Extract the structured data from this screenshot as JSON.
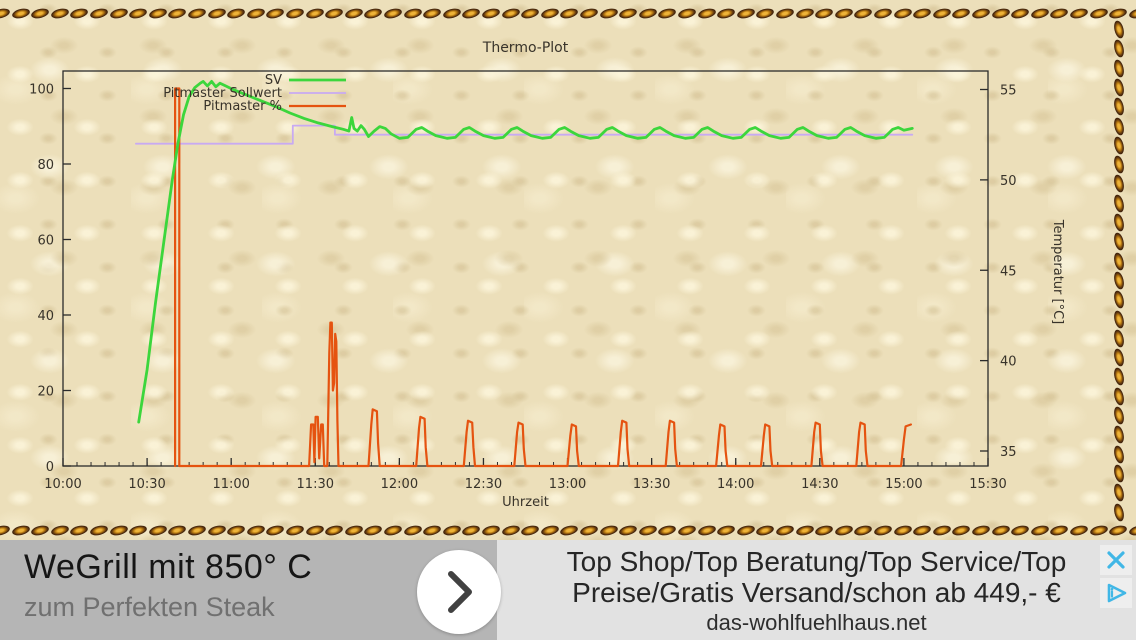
{
  "theme": {
    "leather_bg": "#ecdfba",
    "chain_dark": "#311808",
    "chain_gold": "#eeb338",
    "axis_color": "#2b2b2b",
    "label_color": "#38332a"
  },
  "chart_data": {
    "type": "line",
    "title": "Thermo-Plot",
    "xlabel": "Uhrzeit",
    "ylabel_right": "Temperatur [°C]",
    "legend_position": "top-left-inside",
    "grid": false,
    "x_axis": {
      "unit": "minutes_of_day",
      "min_minutes": 600,
      "max_minutes": 930,
      "minor_step_minutes": 5,
      "major_ticks": [
        {
          "m": 600,
          "label": "10:00"
        },
        {
          "m": 630,
          "label": "10:30"
        },
        {
          "m": 660,
          "label": "11:00"
        },
        {
          "m": 690,
          "label": "11:30"
        },
        {
          "m": 720,
          "label": "12:00"
        },
        {
          "m": 750,
          "label": "12:30"
        },
        {
          "m": 780,
          "label": "13:00"
        },
        {
          "m": 810,
          "label": "13:30"
        },
        {
          "m": 840,
          "label": "14:00"
        },
        {
          "m": 870,
          "label": "14:30"
        },
        {
          "m": 900,
          "label": "15:00"
        },
        {
          "m": 930,
          "label": "15:30"
        }
      ]
    },
    "y_left": {
      "min": 0,
      "max": 100,
      "ticks": [
        0,
        20,
        40,
        60,
        80,
        100
      ],
      "unit": "%"
    },
    "y_right": {
      "min": 35,
      "max": 55,
      "ticks": [
        35,
        40,
        45,
        50,
        55
      ],
      "unit": "°C"
    },
    "series": [
      {
        "name": "SV",
        "color": "#3cd63c",
        "axis": "right",
        "unit": "°C",
        "width": 2.8,
        "points": [
          [
            627,
            36.6
          ],
          [
            630,
            39.5
          ],
          [
            633,
            43.2
          ],
          [
            636,
            46.6
          ],
          [
            639,
            50.0
          ],
          [
            641,
            52.0
          ],
          [
            643,
            53.6
          ],
          [
            645,
            54.6
          ],
          [
            647,
            55.1
          ],
          [
            649,
            55.35
          ],
          [
            650,
            55.45
          ],
          [
            651.5,
            55.2
          ],
          [
            653,
            55.45
          ],
          [
            654.5,
            55.15
          ],
          [
            656,
            55.35
          ],
          [
            658,
            55.2
          ],
          [
            660,
            55.05
          ],
          [
            663,
            54.85
          ],
          [
            667,
            54.6
          ],
          [
            671,
            54.35
          ],
          [
            676,
            54.05
          ],
          [
            681,
            53.7
          ],
          [
            686,
            53.4
          ],
          [
            691,
            53.15
          ],
          [
            696,
            52.95
          ],
          [
            700,
            52.8
          ],
          [
            702,
            52.7
          ],
          [
            703,
            53.45
          ],
          [
            703.8,
            52.85
          ],
          [
            705,
            52.7
          ],
          [
            706.3,
            53.0
          ],
          [
            707.5,
            52.8
          ],
          [
            709,
            52.4
          ],
          [
            711,
            52.7
          ],
          [
            713,
            52.95
          ],
          [
            715,
            52.85
          ],
          [
            717,
            52.55
          ],
          [
            720,
            52.3
          ],
          [
            723,
            52.35
          ],
          [
            726,
            52.8
          ],
          [
            728,
            52.9
          ],
          [
            730,
            52.7
          ],
          [
            733,
            52.45
          ],
          [
            737,
            52.3
          ],
          [
            740,
            52.35
          ],
          [
            743,
            52.8
          ],
          [
            745,
            52.9
          ],
          [
            747,
            52.7
          ],
          [
            750,
            52.45
          ],
          [
            754,
            52.3
          ],
          [
            757,
            52.35
          ],
          [
            760,
            52.8
          ],
          [
            762,
            52.9
          ],
          [
            764,
            52.7
          ],
          [
            767,
            52.45
          ],
          [
            771,
            52.3
          ],
          [
            774,
            52.35
          ],
          [
            777,
            52.8
          ],
          [
            779,
            52.9
          ],
          [
            781,
            52.7
          ],
          [
            784,
            52.45
          ],
          [
            788,
            52.3
          ],
          [
            791,
            52.35
          ],
          [
            794,
            52.8
          ],
          [
            796,
            52.9
          ],
          [
            798,
            52.7
          ],
          [
            801,
            52.45
          ],
          [
            805,
            52.3
          ],
          [
            808,
            52.35
          ],
          [
            811,
            52.8
          ],
          [
            813,
            52.9
          ],
          [
            815,
            52.7
          ],
          [
            818,
            52.45
          ],
          [
            822,
            52.3
          ],
          [
            825,
            52.35
          ],
          [
            828,
            52.8
          ],
          [
            830,
            52.9
          ],
          [
            832,
            52.7
          ],
          [
            835,
            52.45
          ],
          [
            839,
            52.3
          ],
          [
            842,
            52.35
          ],
          [
            845,
            52.8
          ],
          [
            847,
            52.9
          ],
          [
            849,
            52.7
          ],
          [
            852,
            52.45
          ],
          [
            856,
            52.3
          ],
          [
            859,
            52.35
          ],
          [
            862,
            52.8
          ],
          [
            864,
            52.9
          ],
          [
            866,
            52.7
          ],
          [
            869,
            52.45
          ],
          [
            873,
            52.3
          ],
          [
            876,
            52.35
          ],
          [
            879,
            52.8
          ],
          [
            881,
            52.9
          ],
          [
            883,
            52.7
          ],
          [
            886,
            52.45
          ],
          [
            890,
            52.3
          ],
          [
            893,
            52.35
          ],
          [
            896,
            52.8
          ],
          [
            898,
            52.9
          ],
          [
            900,
            52.75
          ],
          [
            903,
            52.85
          ]
        ]
      },
      {
        "name": "Pitmaster Sollwert",
        "color": "#c8aaf2",
        "axis": "right",
        "unit": "°C",
        "width": 1.8,
        "points": [
          [
            626,
            52.0
          ],
          [
            682,
            52.0
          ],
          [
            682,
            53.0
          ],
          [
            697,
            53.0
          ],
          [
            697,
            52.5
          ],
          [
            903,
            52.5
          ]
        ]
      },
      {
        "name": "Pitmaster %",
        "color": "#e55310",
        "axis": "left",
        "unit": "%",
        "width": 2.2,
        "points": [
          [
            640,
            0
          ],
          [
            640,
            100
          ],
          [
            641.5,
            100
          ],
          [
            641.5,
            0
          ],
          [
            687.8,
            0
          ],
          [
            688.5,
            11
          ],
          [
            689.3,
            11
          ],
          [
            689.7,
            1
          ],
          [
            690.1,
            13
          ],
          [
            690.9,
            13
          ],
          [
            691.4,
            2
          ],
          [
            692.1,
            11
          ],
          [
            692.7,
            11
          ],
          [
            693.2,
            0
          ],
          [
            694.3,
            0
          ],
          [
            695,
            30
          ],
          [
            695.4,
            38
          ],
          [
            695.9,
            38
          ],
          [
            696.3,
            20
          ],
          [
            696.7,
            22
          ],
          [
            697.1,
            35
          ],
          [
            697.5,
            33
          ],
          [
            697.9,
            12
          ],
          [
            698.3,
            0
          ],
          [
            709,
            0
          ],
          [
            710,
            11
          ],
          [
            710.5,
            15
          ],
          [
            712,
            14.5
          ],
          [
            712.4,
            6
          ],
          [
            713,
            0
          ],
          [
            726,
            0
          ],
          [
            727,
            10
          ],
          [
            727.5,
            13
          ],
          [
            729,
            12.5
          ],
          [
            729.4,
            5
          ],
          [
            730,
            0
          ],
          [
            743,
            0
          ],
          [
            744,
            9
          ],
          [
            744.5,
            12
          ],
          [
            746,
            11.5
          ],
          [
            746.4,
            5
          ],
          [
            747,
            0
          ],
          [
            761,
            0
          ],
          [
            762,
            9
          ],
          [
            762.5,
            11.5
          ],
          [
            764,
            11
          ],
          [
            764.4,
            4.5
          ],
          [
            765,
            0
          ],
          [
            780,
            0
          ],
          [
            781,
            8
          ],
          [
            781.5,
            11
          ],
          [
            783,
            10.5
          ],
          [
            783.4,
            4
          ],
          [
            784,
            0
          ],
          [
            798,
            0
          ],
          [
            799,
            9
          ],
          [
            799.5,
            12
          ],
          [
            801,
            11.5
          ],
          [
            801.4,
            4.5
          ],
          [
            802,
            0
          ],
          [
            815,
            0
          ],
          [
            816,
            9
          ],
          [
            816.5,
            12
          ],
          [
            818,
            11.5
          ],
          [
            818.4,
            4.5
          ],
          [
            819,
            0
          ],
          [
            833,
            0
          ],
          [
            834,
            8
          ],
          [
            834.5,
            11
          ],
          [
            836,
            10.5
          ],
          [
            836.4,
            4
          ],
          [
            837,
            0
          ],
          [
            849,
            0
          ],
          [
            850,
            8
          ],
          [
            850.5,
            11
          ],
          [
            852,
            10.5
          ],
          [
            852.4,
            4
          ],
          [
            853,
            0
          ],
          [
            867,
            0
          ],
          [
            868,
            9
          ],
          [
            868.5,
            11.5
          ],
          [
            870,
            11
          ],
          [
            870.4,
            4
          ],
          [
            871,
            0
          ],
          [
            883,
            0
          ],
          [
            884,
            9
          ],
          [
            884.5,
            11.5
          ],
          [
            886,
            11
          ],
          [
            886.4,
            4
          ],
          [
            887,
            0
          ],
          [
            899,
            0
          ],
          [
            900,
            7
          ],
          [
            900.6,
            10.5
          ],
          [
            902.5,
            11
          ]
        ]
      }
    ]
  },
  "banner": {
    "headline": "WeGrill mit 850° C",
    "subline": "zum Perfekten Steak",
    "ad_line1": "Top Shop/Top Beratung/Top Service/Top",
    "ad_line2": "Preise/Gratis Versand/schon ab 449,- €",
    "ad_url": "das-wohlfuehlhaus.net",
    "icon_color": "#41b7e6",
    "close_icon": "close",
    "adchoices_icon": "adchoices"
  }
}
